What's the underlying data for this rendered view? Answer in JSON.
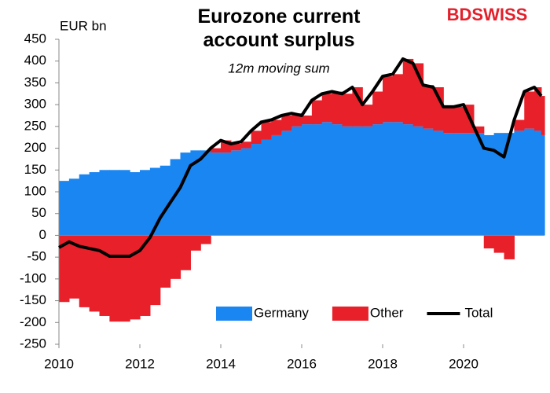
{
  "chart_data": {
    "type": "stacked-area-line",
    "title": "Eurozone current account surplus",
    "subtitle": "12m moving sum",
    "y_label": "EUR bn",
    "logo": "BDSWISS",
    "x": [
      2010,
      2010.25,
      2010.5,
      2010.75,
      2011,
      2011.25,
      2011.5,
      2011.75,
      2012,
      2012.25,
      2012.5,
      2012.75,
      2013,
      2013.25,
      2013.5,
      2013.75,
      2014,
      2014.25,
      2014.5,
      2014.75,
      2015,
      2015.25,
      2015.5,
      2015.75,
      2016,
      2016.25,
      2016.5,
      2016.75,
      2017,
      2017.25,
      2017.5,
      2017.75,
      2018,
      2018.25,
      2018.5,
      2018.75,
      2019,
      2019.25,
      2019.5,
      2019.75,
      2020,
      2020.25,
      2020.5,
      2020.75,
      2021,
      2021.25,
      2021.5,
      2021.75,
      2021.92
    ],
    "series": [
      {
        "name": "Germany",
        "color": "#1a86f2",
        "kind": "area",
        "values": [
          125,
          130,
          140,
          145,
          150,
          150,
          150,
          145,
          150,
          155,
          160,
          175,
          190,
          195,
          195,
          190,
          190,
          195,
          200,
          210,
          220,
          230,
          240,
          250,
          255,
          255,
          260,
          255,
          250,
          250,
          250,
          255,
          260,
          260,
          255,
          250,
          245,
          240,
          235,
          235,
          235,
          235,
          230,
          235,
          235,
          240,
          245,
          240,
          230
        ]
      },
      {
        "name": "Other",
        "color": "#e8202a",
        "kind": "area",
        "values": [
          -153,
          -145,
          -165,
          -175,
          -185,
          -198,
          -198,
          -193,
          -185,
          -160,
          -120,
          -100,
          -80,
          -35,
          -20,
          10,
          28,
          15,
          15,
          30,
          40,
          35,
          35,
          30,
          20,
          55,
          65,
          75,
          75,
          90,
          50,
          75,
          105,
          110,
          150,
          145,
          100,
          100,
          60,
          60,
          65,
          15,
          -30,
          -40,
          -55,
          25,
          85,
          100,
          90
        ]
      },
      {
        "name": "Total",
        "color": "#000000",
        "kind": "line",
        "values": [
          -28,
          -15,
          -25,
          -30,
          -35,
          -48,
          -48,
          -48,
          -35,
          -5,
          40,
          75,
          110,
          160,
          175,
          200,
          218,
          210,
          215,
          240,
          260,
          265,
          275,
          280,
          275,
          310,
          325,
          330,
          325,
          340,
          300,
          330,
          365,
          370,
          405,
          395,
          345,
          340,
          295,
          295,
          300,
          250,
          200,
          195,
          180,
          265,
          330,
          340,
          320
        ]
      }
    ],
    "xlim": [
      2010,
      2022
    ],
    "xticks": [
      2010,
      2012,
      2014,
      2016,
      2018,
      2020
    ],
    "ylim": [
      -250,
      450
    ],
    "yticks": [
      -250,
      -200,
      -150,
      -100,
      -50,
      0,
      50,
      100,
      150,
      200,
      250,
      300,
      350,
      400,
      450
    ],
    "legend": "bottom-right"
  }
}
